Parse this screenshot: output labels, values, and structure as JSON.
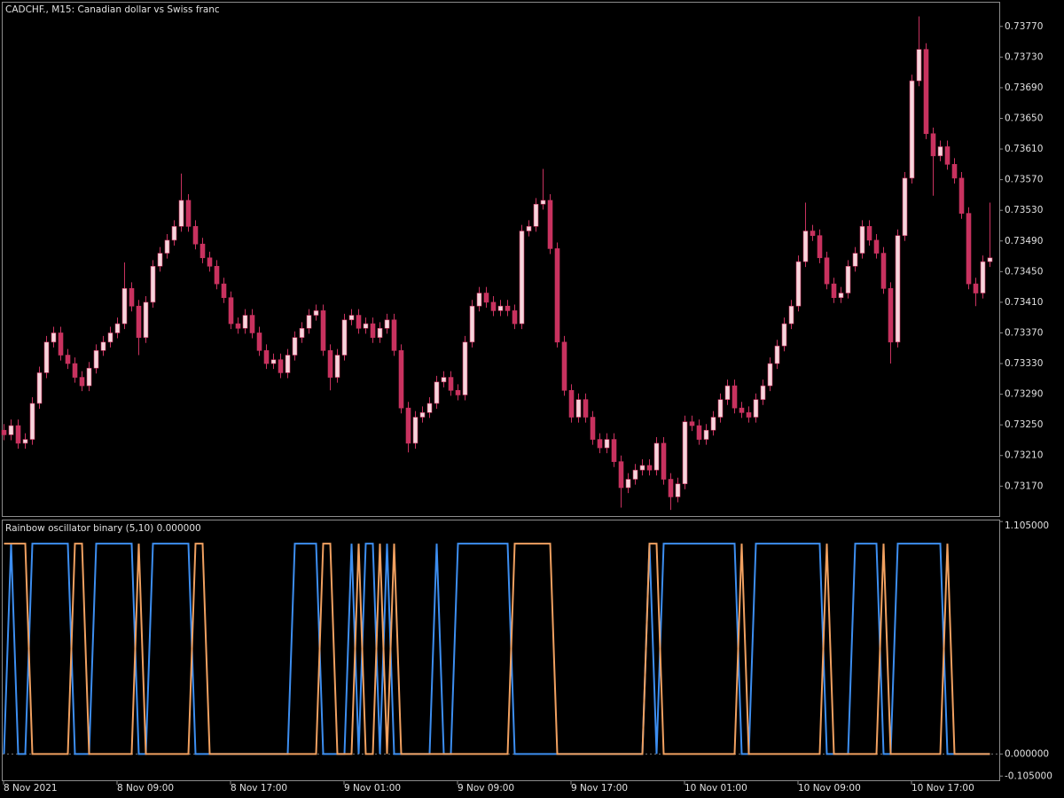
{
  "chart_data": [
    {
      "type": "candlestick",
      "title": "CADCHF., M15:  Canadian dollar vs Swiss franc",
      "up_color": "#f6d5dc",
      "down_color": "#c8325f",
      "wick_color": "#c8325f",
      "open": [
        0.73243,
        0.73237,
        0.73249,
        0.73226,
        0.73231,
        0.73278,
        0.73318,
        0.73358,
        0.7337,
        0.73341,
        0.7333,
        0.73312,
        0.73301,
        0.73324,
        0.73347,
        0.73358,
        0.7337,
        0.73382,
        0.73428,
        0.73405,
        0.73364,
        0.7341,
        0.73457,
        0.73474,
        0.73491,
        0.73509,
        0.73543,
        0.73509,
        0.73486,
        0.73468,
        0.73457,
        0.73434,
        0.73416,
        0.73382,
        0.73376,
        0.73393,
        0.7337,
        0.73347,
        0.7333,
        0.73335,
        0.73318,
        0.73341,
        0.73364,
        0.73376,
        0.73393,
        0.73399,
        0.73347,
        0.73312,
        0.73341,
        0.73387,
        0.73393,
        0.73376,
        0.73382,
        0.73364,
        0.73376,
        0.73387,
        0.73347,
        0.73272,
        0.73226,
        0.7326,
        0.73266,
        0.73278,
        0.73306,
        0.73312,
        0.73295,
        0.73289,
        0.73358,
        0.73405,
        0.73422,
        0.7341,
        0.73399,
        0.73405,
        0.73399,
        0.73382,
        0.73503,
        0.73509,
        0.73538,
        0.73543,
        0.7348,
        0.73358,
        0.73295,
        0.7326,
        0.73283,
        0.7326,
        0.73231,
        0.7322,
        0.73231,
        0.73202,
        0.73168,
        0.73179,
        0.73191,
        0.73197,
        0.73191,
        0.73226,
        0.73179,
        0.73156,
        0.73173,
        0.73254,
        0.73249,
        0.73231,
        0.73243,
        0.7326,
        0.73283,
        0.73301,
        0.73272,
        0.73266,
        0.7326,
        0.73283,
        0.73301,
        0.7333,
        0.73353,
        0.73382,
        0.73405,
        0.73463,
        0.73503,
        0.73497,
        0.73468,
        0.73434,
        0.73416,
        0.73422,
        0.73457,
        0.73474,
        0.73509,
        0.73491,
        0.73474,
        0.73428,
        0.73358,
        0.73497,
        0.73572,
        0.73699,
        0.7374,
        0.7363,
        0.73601,
        0.73613,
        0.7359,
        0.73572,
        0.73526,
        0.73434,
        0.73422,
        0.73463
      ],
      "high": [
        0.73251,
        0.73257,
        0.73257,
        0.73239,
        0.73286,
        0.73326,
        0.73366,
        0.73378,
        0.73378,
        0.73349,
        0.73338,
        0.7332,
        0.73332,
        0.73355,
        0.73366,
        0.73378,
        0.7339,
        0.73462,
        0.73436,
        0.73413,
        0.73418,
        0.73465,
        0.73482,
        0.73499,
        0.73517,
        0.73578,
        0.73551,
        0.73517,
        0.73494,
        0.73476,
        0.73465,
        0.73442,
        0.73424,
        0.7339,
        0.73401,
        0.73401,
        0.73378,
        0.73355,
        0.73343,
        0.73343,
        0.73349,
        0.73372,
        0.73384,
        0.73401,
        0.73407,
        0.73407,
        0.73355,
        0.73349,
        0.73395,
        0.73401,
        0.73401,
        0.7339,
        0.7339,
        0.73384,
        0.73395,
        0.73395,
        0.73355,
        0.7328,
        0.73268,
        0.73274,
        0.73286,
        0.73314,
        0.7332,
        0.7332,
        0.73303,
        0.73366,
        0.73413,
        0.7343,
        0.7343,
        0.73418,
        0.73413,
        0.73413,
        0.73407,
        0.73511,
        0.73517,
        0.73546,
        0.73584,
        0.73551,
        0.73488,
        0.73366,
        0.73303,
        0.73291,
        0.73291,
        0.73268,
        0.73239,
        0.73239,
        0.73239,
        0.7321,
        0.73187,
        0.73199,
        0.73205,
        0.73205,
        0.73234,
        0.73234,
        0.73187,
        0.73181,
        0.73262,
        0.73262,
        0.73257,
        0.73251,
        0.73268,
        0.73291,
        0.73309,
        0.73309,
        0.7328,
        0.73274,
        0.73291,
        0.73309,
        0.73338,
        0.73361,
        0.7339,
        0.73413,
        0.73471,
        0.7354,
        0.73511,
        0.73505,
        0.73476,
        0.73442,
        0.7343,
        0.73465,
        0.73482,
        0.73517,
        0.73517,
        0.73499,
        0.73482,
        0.73436,
        0.73505,
        0.7358,
        0.73707,
        0.73783,
        0.73748,
        0.73638,
        0.73621,
        0.73621,
        0.73598,
        0.7358,
        0.73534,
        0.73442,
        0.73471,
        0.7354
      ],
      "low": [
        0.7323,
        0.7323,
        0.73219,
        0.73219,
        0.73224,
        0.73271,
        0.73311,
        0.73351,
        0.73334,
        0.73323,
        0.73305,
        0.73294,
        0.73294,
        0.73317,
        0.7334,
        0.73351,
        0.73363,
        0.73375,
        0.73398,
        0.73341,
        0.73357,
        0.73403,
        0.7345,
        0.73467,
        0.73484,
        0.73502,
        0.73502,
        0.73479,
        0.73461,
        0.7345,
        0.73427,
        0.73409,
        0.73375,
        0.73369,
        0.73369,
        0.73363,
        0.7334,
        0.73323,
        0.73323,
        0.73311,
        0.73311,
        0.73334,
        0.73357,
        0.73369,
        0.73386,
        0.7334,
        0.73295,
        0.73305,
        0.73334,
        0.7338,
        0.73369,
        0.73369,
        0.73357,
        0.73357,
        0.73369,
        0.7334,
        0.73265,
        0.73214,
        0.73219,
        0.73253,
        0.73259,
        0.73271,
        0.73299,
        0.73288,
        0.73282,
        0.73282,
        0.73351,
        0.73398,
        0.73403,
        0.73392,
        0.73392,
        0.73392,
        0.73375,
        0.73375,
        0.73496,
        0.73502,
        0.73531,
        0.73473,
        0.73351,
        0.73288,
        0.73253,
        0.73253,
        0.73253,
        0.73224,
        0.73213,
        0.73213,
        0.73195,
        0.73142,
        0.73161,
        0.73172,
        0.73184,
        0.73184,
        0.73184,
        0.73172,
        0.73139,
        0.73149,
        0.73166,
        0.73242,
        0.73224,
        0.73224,
        0.73236,
        0.73253,
        0.73276,
        0.73265,
        0.73259,
        0.73253,
        0.73253,
        0.73276,
        0.73294,
        0.73323,
        0.73346,
        0.73375,
        0.73398,
        0.73456,
        0.7349,
        0.73461,
        0.73427,
        0.73409,
        0.73409,
        0.73415,
        0.7345,
        0.73467,
        0.73484,
        0.73467,
        0.73421,
        0.7333,
        0.73351,
        0.7349,
        0.73565,
        0.73692,
        0.73623,
        0.73549,
        0.73594,
        0.73583,
        0.73565,
        0.73519,
        0.73427,
        0.73405,
        0.73415,
        0.73456
      ],
      "close": [
        0.73237,
        0.73249,
        0.73226,
        0.73231,
        0.73278,
        0.73318,
        0.73358,
        0.7337,
        0.73341,
        0.7333,
        0.73312,
        0.73301,
        0.73324,
        0.73347,
        0.73358,
        0.7337,
        0.73382,
        0.73428,
        0.73405,
        0.73364,
        0.7341,
        0.73457,
        0.73474,
        0.73491,
        0.73509,
        0.73543,
        0.73509,
        0.73486,
        0.73468,
        0.73457,
        0.73434,
        0.73416,
        0.73382,
        0.73376,
        0.73393,
        0.7337,
        0.73347,
        0.7333,
        0.73335,
        0.73318,
        0.73341,
        0.73364,
        0.73376,
        0.73393,
        0.73399,
        0.73347,
        0.73312,
        0.73341,
        0.73387,
        0.73393,
        0.73376,
        0.73382,
        0.73364,
        0.73376,
        0.73387,
        0.73347,
        0.73272,
        0.73226,
        0.7326,
        0.73266,
        0.73278,
        0.73306,
        0.73312,
        0.73295,
        0.73289,
        0.73358,
        0.73405,
        0.73422,
        0.7341,
        0.73399,
        0.73405,
        0.73399,
        0.73382,
        0.73503,
        0.73509,
        0.73538,
        0.73543,
        0.7348,
        0.73358,
        0.73295,
        0.7326,
        0.73283,
        0.7326,
        0.73231,
        0.7322,
        0.73231,
        0.73202,
        0.73168,
        0.73179,
        0.73191,
        0.73197,
        0.73191,
        0.73226,
        0.73179,
        0.73156,
        0.73173,
        0.73254,
        0.73249,
        0.73231,
        0.73243,
        0.7326,
        0.73283,
        0.73301,
        0.73272,
        0.73266,
        0.7326,
        0.73283,
        0.73301,
        0.7333,
        0.73353,
        0.73382,
        0.73405,
        0.73463,
        0.73503,
        0.73497,
        0.73468,
        0.73434,
        0.73416,
        0.73422,
        0.73457,
        0.73474,
        0.73509,
        0.73491,
        0.73474,
        0.73428,
        0.73358,
        0.73497,
        0.73572,
        0.73699,
        0.7374,
        0.7363,
        0.73601,
        0.73613,
        0.7359,
        0.73572,
        0.73526,
        0.73434,
        0.73422,
        0.73463,
        0.73468
      ],
      "ylim": [
        0.73131,
        0.73801
      ],
      "yticks": [
        {
          "value": 0.7377,
          "label": "0.73770"
        },
        {
          "value": 0.7373,
          "label": "0.73730"
        },
        {
          "value": 0.7369,
          "label": "0.73690"
        },
        {
          "value": 0.7365,
          "label": "0.73650"
        },
        {
          "value": 0.7361,
          "label": "0.73610"
        },
        {
          "value": 0.7357,
          "label": "0.73570"
        },
        {
          "value": 0.7353,
          "label": "0.73530"
        },
        {
          "value": 0.7349,
          "label": "0.73490"
        },
        {
          "value": 0.7345,
          "label": "0.73450"
        },
        {
          "value": 0.7341,
          "label": "0.73410"
        },
        {
          "value": 0.7337,
          "label": "0.73370"
        },
        {
          "value": 0.7333,
          "label": "0.73330"
        },
        {
          "value": 0.7329,
          "label": "0.73290"
        },
        {
          "value": 0.7325,
          "label": "0.73250"
        },
        {
          "value": 0.7321,
          "label": "0.73210"
        },
        {
          "value": 0.7317,
          "label": "0.73170"
        }
      ],
      "xticks": [
        {
          "value": 0,
          "label": "8 Nov 2021"
        },
        {
          "value": 16,
          "label": "8 Nov 09:00"
        },
        {
          "value": 32,
          "label": "8 Nov 17:00"
        },
        {
          "value": 48,
          "label": "9 Nov 01:00"
        },
        {
          "value": 64,
          "label": "9 Nov 09:00"
        },
        {
          "value": 80,
          "label": "9 Nov 17:00"
        },
        {
          "value": 96,
          "label": "10 Nov 01:00"
        },
        {
          "value": 112,
          "label": "10 Nov 09:00"
        },
        {
          "value": 128,
          "label": "10 Nov 17:00"
        }
      ]
    },
    {
      "type": "line",
      "title": "Rainbow oscillator binary (5,10) 0.000000",
      "series": [
        {
          "color": "#3d8ef0",
          "values": [
            0,
            1,
            0,
            0,
            1,
            1,
            1,
            1,
            1,
            1,
            0,
            0,
            0,
            1,
            1,
            1,
            1,
            1,
            1,
            0,
            0,
            1,
            1,
            1,
            1,
            1,
            1,
            0,
            0,
            0,
            0,
            0,
            0,
            0,
            0,
            0,
            0,
            0,
            0,
            0,
            0,
            1,
            1,
            1,
            1,
            0,
            0,
            0,
            0,
            1,
            0,
            1,
            1,
            0,
            1,
            0,
            0,
            0,
            0,
            0,
            0,
            1,
            0,
            0,
            1,
            1,
            1,
            1,
            1,
            1,
            1,
            1,
            0,
            0,
            0,
            0,
            0,
            0,
            0,
            0,
            0,
            0,
            0,
            0,
            0,
            0,
            0,
            0,
            0,
            0,
            0,
            1,
            0,
            1,
            1,
            1,
            1,
            1,
            1,
            1,
            1,
            1,
            1,
            1,
            0,
            0,
            1,
            1,
            1,
            1,
            1,
            1,
            1,
            1,
            1,
            1,
            0,
            0,
            0,
            0,
            1,
            1,
            1,
            1,
            0,
            0,
            1,
            1,
            1,
            1,
            1,
            1,
            1,
            0,
            0,
            0,
            0,
            0,
            0,
            0
          ]
        },
        {
          "color": "#f0a060",
          "values": [
            1,
            1,
            1,
            1,
            0,
            0,
            0,
            0,
            0,
            0,
            1,
            1,
            0,
            0,
            0,
            0,
            0,
            0,
            0,
            1,
            0,
            0,
            0,
            0,
            0,
            0,
            0,
            1,
            1,
            0,
            0,
            0,
            0,
            0,
            0,
            0,
            0,
            0,
            0,
            0,
            0,
            0,
            0,
            0,
            0,
            1,
            1,
            0,
            0,
            0,
            1,
            0,
            0,
            1,
            0,
            1,
            0,
            0,
            0,
            0,
            0,
            0,
            0,
            0,
            0,
            0,
            0,
            0,
            0,
            0,
            0,
            0,
            1,
            1,
            1,
            1,
            1,
            1,
            0,
            0,
            0,
            0,
            0,
            0,
            0,
            0,
            0,
            0,
            0,
            0,
            0,
            1,
            1,
            0,
            0,
            0,
            0,
            0,
            0,
            0,
            0,
            0,
            0,
            0,
            1,
            0,
            0,
            0,
            0,
            0,
            0,
            0,
            0,
            0,
            0,
            0,
            1,
            0,
            0,
            0,
            0,
            0,
            0,
            0,
            1,
            0,
            0,
            0,
            0,
            0,
            0,
            0,
            0,
            1,
            0,
            0,
            0,
            0,
            0,
            0
          ]
        }
      ],
      "ylim": [
        -0.125,
        1.11
      ],
      "yticks": [
        {
          "value": 1.105,
          "label": "1.105000"
        },
        {
          "value": 0,
          "label": "0.000000"
        },
        {
          "value": -0.105,
          "label": "-0.105000"
        }
      ]
    }
  ]
}
